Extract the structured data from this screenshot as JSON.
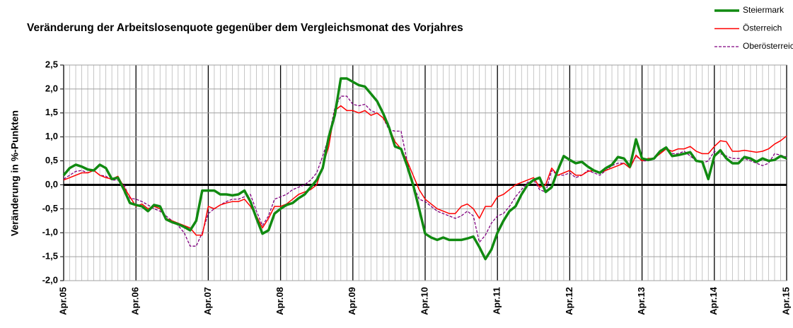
{
  "chart_data": {
    "type": "line",
    "title": "Veränderung der Arbeitslosenquote gegenüber dem Vergleichsmonat des Vorjahres",
    "y_label": "Veränderung in %-Punkten",
    "categories": [
      "Apr.05",
      null,
      null,
      null,
      null,
      null,
      null,
      null,
      null,
      null,
      null,
      null,
      "Apr.06",
      null,
      null,
      null,
      null,
      null,
      null,
      null,
      null,
      null,
      null,
      null,
      "Apr.07",
      null,
      null,
      null,
      null,
      null,
      null,
      null,
      null,
      null,
      null,
      null,
      "Apr.08",
      null,
      null,
      null,
      null,
      null,
      null,
      null,
      null,
      null,
      null,
      null,
      "Apr.09",
      null,
      null,
      null,
      null,
      null,
      null,
      null,
      null,
      null,
      null,
      null,
      "Apr.10",
      null,
      null,
      null,
      null,
      null,
      null,
      null,
      null,
      null,
      null,
      null,
      "Apr.11",
      null,
      null,
      null,
      null,
      null,
      null,
      null,
      null,
      null,
      null,
      null,
      "Apr.12",
      null,
      null,
      null,
      null,
      null,
      null,
      null,
      null,
      null,
      null,
      null,
      "Apr.13",
      null,
      null,
      null,
      null,
      null,
      null,
      null,
      null,
      null,
      null,
      null,
      "Apr.14",
      null,
      null,
      null,
      null,
      null,
      null,
      null,
      null,
      null,
      null,
      null,
      "Apr.15"
    ],
    "series": [
      {
        "name": "Steiermark",
        "color": "#118a11",
        "width": 3.5,
        "dashed": false,
        "values": [
          0.2,
          0.35,
          0.42,
          0.38,
          0.32,
          0.3,
          0.42,
          0.35,
          0.12,
          0.15,
          -0.1,
          -0.38,
          -0.42,
          -0.45,
          -0.55,
          -0.42,
          -0.45,
          -0.72,
          -0.78,
          -0.82,
          -0.88,
          -0.95,
          -0.75,
          -0.12,
          -0.12,
          -0.12,
          -0.2,
          -0.2,
          -0.22,
          -0.2,
          -0.12,
          -0.35,
          -0.7,
          -1.02,
          -0.95,
          -0.6,
          -0.5,
          -0.42,
          -0.38,
          -0.28,
          -0.2,
          -0.05,
          0.1,
          0.35,
          1.0,
          1.45,
          2.22,
          2.22,
          2.15,
          2.08,
          2.05,
          1.9,
          1.75,
          1.5,
          1.2,
          0.8,
          0.75,
          0.4,
          0.0,
          -0.5,
          -1.02,
          -1.1,
          -1.15,
          -1.1,
          -1.15,
          -1.15,
          -1.15,
          -1.12,
          -1.08,
          -1.3,
          -1.55,
          -1.35,
          -1.0,
          -0.75,
          -0.55,
          -0.45,
          -0.2,
          0.0,
          0.1,
          0.15,
          -0.15,
          -0.05,
          0.3,
          0.6,
          0.52,
          0.45,
          0.48,
          0.38,
          0.3,
          0.25,
          0.35,
          0.42,
          0.58,
          0.55,
          0.38,
          0.95,
          0.55,
          0.52,
          0.55,
          0.7,
          0.78,
          0.6,
          0.62,
          0.65,
          0.68,
          0.5,
          0.48,
          0.12,
          0.6,
          0.72,
          0.55,
          0.45,
          0.45,
          0.58,
          0.55,
          0.48,
          0.55,
          0.5,
          0.52,
          0.6,
          0.55
        ]
      },
      {
        "name": "Österreich",
        "color": "#ff0000",
        "width": 1.5,
        "dashed": false,
        "values": [
          0.1,
          0.15,
          0.2,
          0.25,
          0.25,
          0.3,
          0.2,
          0.15,
          0.12,
          0.18,
          -0.05,
          -0.25,
          -0.45,
          -0.4,
          -0.5,
          -0.45,
          -0.5,
          -0.7,
          -0.75,
          -0.8,
          -0.85,
          -0.9,
          -1.05,
          -1.05,
          -0.45,
          -0.5,
          -0.42,
          -0.38,
          -0.35,
          -0.35,
          -0.3,
          -0.45,
          -0.65,
          -0.9,
          -0.7,
          -0.45,
          -0.45,
          -0.4,
          -0.3,
          -0.2,
          -0.15,
          -0.1,
          0.0,
          0.4,
          0.8,
          1.55,
          1.65,
          1.55,
          1.55,
          1.5,
          1.55,
          1.45,
          1.5,
          1.4,
          1.2,
          0.9,
          0.75,
          0.5,
          0.2,
          -0.1,
          -0.3,
          -0.4,
          -0.5,
          -0.55,
          -0.6,
          -0.6,
          -0.45,
          -0.4,
          -0.5,
          -0.7,
          -0.45,
          -0.45,
          -0.25,
          -0.2,
          -0.1,
          0.0,
          0.05,
          0.1,
          0.15,
          -0.05,
          0.0,
          0.35,
          0.2,
          0.25,
          0.3,
          0.2,
          0.2,
          0.28,
          0.3,
          0.25,
          0.3,
          0.35,
          0.4,
          0.45,
          0.35,
          0.62,
          0.5,
          0.55,
          0.55,
          0.65,
          0.75,
          0.7,
          0.75,
          0.75,
          0.8,
          0.7,
          0.65,
          0.65,
          0.8,
          0.92,
          0.9,
          0.7,
          0.7,
          0.72,
          0.7,
          0.68,
          0.7,
          0.75,
          0.85,
          0.92,
          1.02
        ]
      },
      {
        "name": "Oberösterreich",
        "color": "#800080",
        "width": 1.3,
        "dashed": true,
        "values": [
          0.12,
          0.2,
          0.28,
          0.3,
          0.25,
          0.3,
          0.2,
          0.18,
          0.1,
          0.1,
          0.0,
          -0.28,
          -0.3,
          -0.35,
          -0.42,
          -0.5,
          -0.55,
          -0.65,
          -0.75,
          -0.85,
          -1.0,
          -1.28,
          -1.28,
          -1.0,
          -0.6,
          -0.5,
          -0.42,
          -0.35,
          -0.3,
          -0.3,
          -0.25,
          -0.2,
          -0.55,
          -0.85,
          -0.65,
          -0.3,
          -0.25,
          -0.2,
          -0.1,
          -0.05,
          0.0,
          0.1,
          0.25,
          0.6,
          1.0,
          1.6,
          1.85,
          1.85,
          1.68,
          1.65,
          1.68,
          1.55,
          1.5,
          1.4,
          1.15,
          1.12,
          1.12,
          0.5,
          0.0,
          -0.3,
          -0.35,
          -0.45,
          -0.55,
          -0.6,
          -0.65,
          -0.7,
          -0.65,
          -0.55,
          -0.65,
          -1.2,
          -1.05,
          -0.8,
          -0.65,
          -0.6,
          -0.45,
          -0.25,
          -0.1,
          0.05,
          0.1,
          -0.1,
          -0.15,
          0.3,
          0.2,
          0.2,
          0.25,
          0.15,
          0.2,
          0.3,
          0.25,
          0.2,
          0.3,
          0.4,
          0.45,
          0.45,
          0.35,
          0.6,
          0.5,
          0.5,
          0.55,
          0.65,
          0.75,
          0.65,
          0.65,
          0.7,
          0.6,
          0.5,
          0.45,
          0.5,
          0.7,
          0.65,
          0.6,
          0.55,
          0.55,
          0.55,
          0.5,
          0.45,
          0.4,
          0.45,
          0.65,
          0.62,
          0.58
        ]
      }
    ],
    "ylim": [
      -2.0,
      2.5
    ],
    "yticks": [
      {
        "value": -2.0,
        "label": "-2,0"
      },
      {
        "value": -1.5,
        "label": "-1,5"
      },
      {
        "value": -1.0,
        "label": "-1,0"
      },
      {
        "value": -0.5,
        "label": "-0,5"
      },
      {
        "value": 0.0,
        "label": "0,0"
      },
      {
        "value": 0.5,
        "label": "0,5"
      },
      {
        "value": 1.0,
        "label": "1,0"
      },
      {
        "value": 1.5,
        "label": "1,5"
      },
      {
        "value": 2.0,
        "label": "2,0"
      },
      {
        "value": 2.5,
        "label": "2,5"
      }
    ],
    "grid": true,
    "legend": "top-right"
  }
}
